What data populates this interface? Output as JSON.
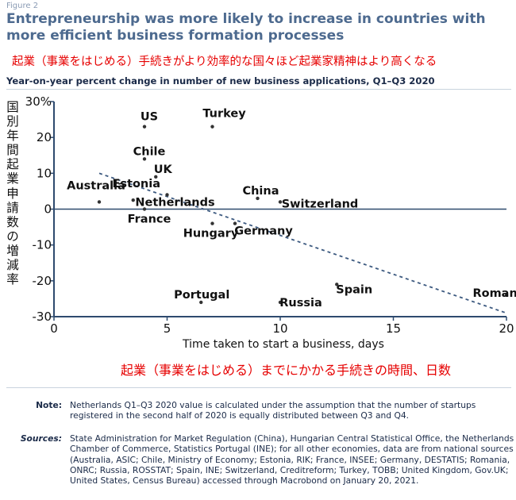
{
  "figure_label": "Figure 2",
  "title": "Entrepreneurship was more likely to increase in countries with more efficient business formation processes",
  "title_jp": "起業（事業をはじめる）手続きがより効率的な国々ほど起業家精神はより高くなる",
  "subtitle": "Year-on-year percent change in number of new business applications, Q1–Q3 2020",
  "ylabel_jp": "国別年間起業申請数の増減率",
  "xlabel_jp": "起業（事業をはじめる）までにかかる手続きの時間、日数",
  "chart_data": {
    "type": "scatter",
    "xlabel": "Time taken to start a business, days",
    "ylabel": "",
    "xlim": [
      0,
      20
    ],
    "ylim": [
      -30,
      30
    ],
    "xticks": [
      "0",
      "5",
      "10",
      "15",
      "20"
    ],
    "yticks": [
      "30%",
      "20",
      "10",
      "0",
      "-10",
      "-20",
      "-30"
    ],
    "points": [
      {
        "label": "US",
        "x": 4,
        "y": 23
      },
      {
        "label": "Turkey",
        "x": 7,
        "y": 23
      },
      {
        "label": "Chile",
        "x": 4,
        "y": 14
      },
      {
        "label": "UK",
        "x": 4.5,
        "y": 9
      },
      {
        "label": "Australia",
        "x": 2,
        "y": 2
      },
      {
        "label": "Estonia",
        "x": 3.5,
        "y": 2.5
      },
      {
        "label": "Netherlands",
        "x": 5,
        "y": 4
      },
      {
        "label": "France",
        "x": 4,
        "y": 0
      },
      {
        "label": "Hungary",
        "x": 7,
        "y": -4
      },
      {
        "label": "China",
        "x": 9,
        "y": 3
      },
      {
        "label": "Switzerland",
        "x": 10,
        "y": 2
      },
      {
        "label": "Germany",
        "x": 8,
        "y": -4
      },
      {
        "label": "Portugal",
        "x": 6.5,
        "y": -26
      },
      {
        "label": "Russia",
        "x": 10,
        "y": -26
      },
      {
        "label": "Spain",
        "x": 12.5,
        "y": -21
      },
      {
        "label": "Romania",
        "x": 20,
        "y": -24
      }
    ],
    "trendline": {
      "x": [
        2,
        20
      ],
      "y": [
        10,
        -29
      ]
    },
    "grid": false
  },
  "note_key": "Note:",
  "note": "Netherlands Q1–Q3 2020 value is calculated under the assumption that the number of startups registered in the second half of 2020 is equally distributed between Q3 and Q4.",
  "sources_key": "Sources:",
  "sources": "State Administration for Market Regulation (China), Hungarian Central Statistical Office, the Netherlands Chamber of Commerce, Statistics Portugal (INE); for all other economies, data are from national sources (Australia, ASIC; Chile, Ministry of Economy; Estonia, RIK; France, INSEE; Germany, DESTATIS; Romania, ONRC; Russia, ROSSTAT; Spain, INE; Switzerland, Creditreform; Turkey, TOBB; United Kingdom, Gov.UK; United States, Census Bureau) accessed through Macrobond on January 20, 2021.",
  "colors": {
    "trend": "#3d5a80",
    "axis": "#2e4a6e",
    "point": "#333333",
    "accent_red": "#e60000"
  }
}
